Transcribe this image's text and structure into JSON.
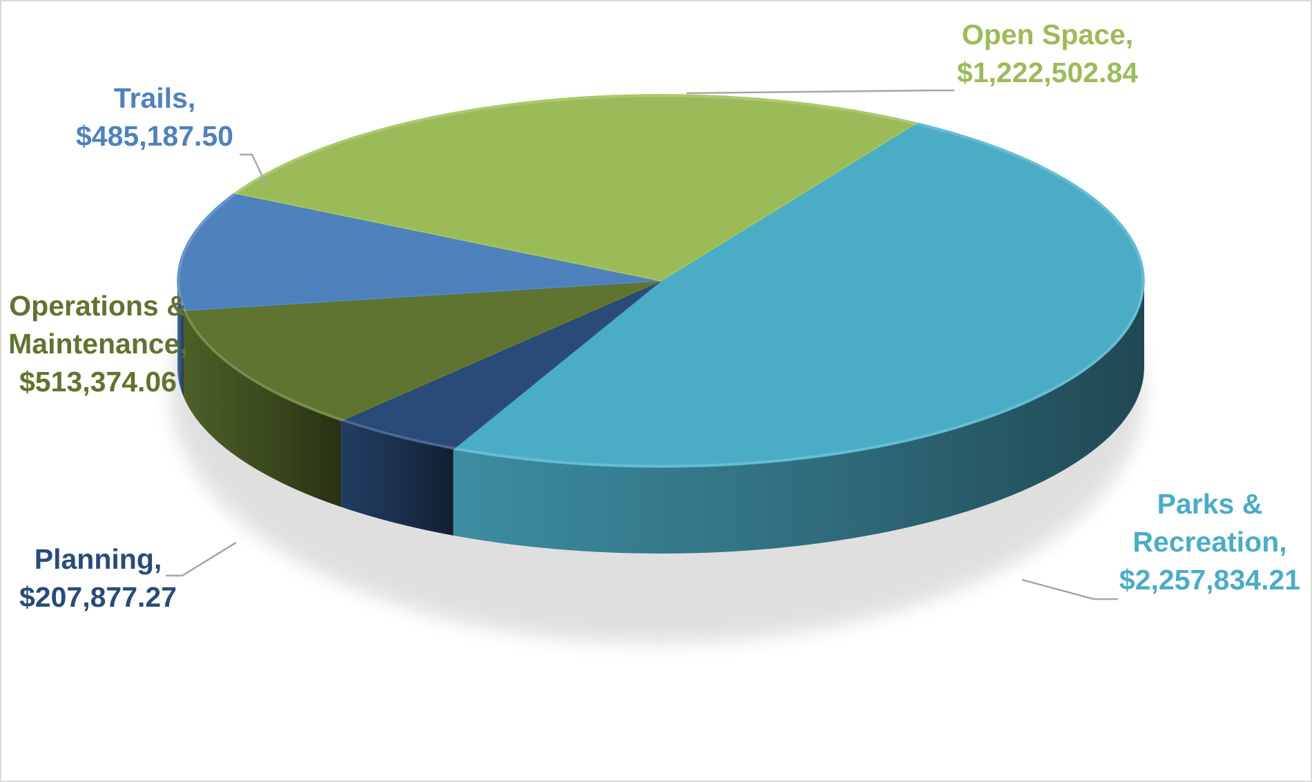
{
  "chart_data": {
    "type": "pie",
    "title": "",
    "legend": "none",
    "slices": [
      {
        "category": "Parks & Recreation",
        "value": 2257834.21,
        "label_lines": [
          "Parks &",
          "Recreation,",
          "$2,257,834.21"
        ],
        "color": "#4bacc6"
      },
      {
        "category": "Planning",
        "value": 207877.27,
        "label_lines": [
          "Planning,",
          "$207,877.27"
        ],
        "color": "#2a4a78"
      },
      {
        "category": "Operations & Maintenance",
        "value": 513374.06,
        "label_lines": [
          "Operations &",
          "Maintenance,",
          "$513,374.06"
        ],
        "color": "#5e7430"
      },
      {
        "category": "Trails",
        "value": 485187.5,
        "label_lines": [
          "Trails,",
          "$485,187.50"
        ],
        "color": "#4f81bd"
      },
      {
        "category": "Open Space",
        "value": 1222502.84,
        "label_lines": [
          "Open Space,",
          "$1,222,502.84"
        ],
        "color": "#9bbb59"
      }
    ]
  }
}
